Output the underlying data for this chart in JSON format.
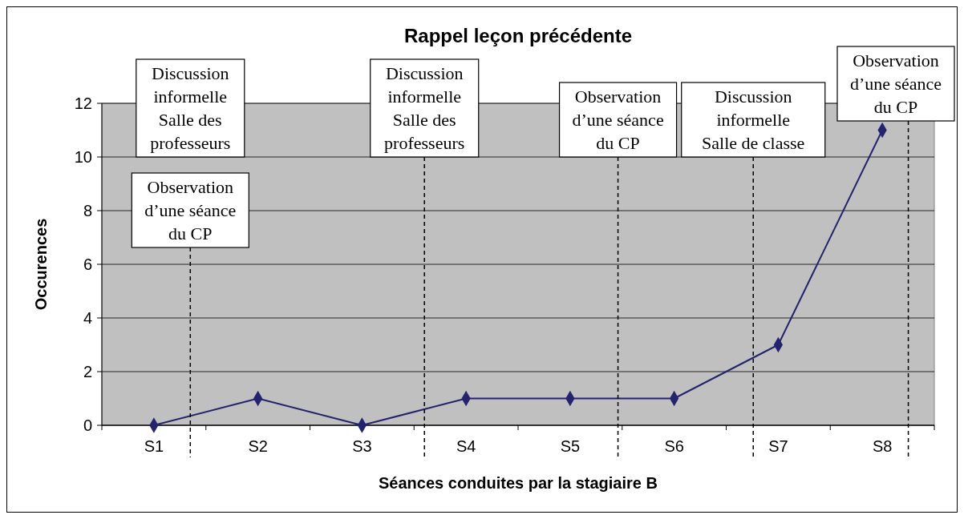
{
  "chart_data": {
    "type": "line",
    "title": "Rappel leçon précédente",
    "xlabel": "Séances conduites par la stagiaire B",
    "ylabel": "Occurences",
    "categories": [
      "S1",
      "S2",
      "S3",
      "S4",
      "S5",
      "S6",
      "S7",
      "S8"
    ],
    "series": [
      {
        "color": "#24246e",
        "values": [
          0,
          1,
          0,
          1,
          1,
          1,
          3,
          11
        ]
      }
    ],
    "ylim": [
      0,
      12
    ],
    "yticks": [
      0,
      2,
      4,
      6,
      8,
      10,
      12
    ],
    "grid": "y",
    "marker": "diamond",
    "line_style": "solid",
    "annotations": [
      "Discussion\ninformelle\nSalle des\nprofesseurs",
      "Observation\nd’une séance\ndu CP",
      "Discussion\ninformelle\nSalle des\nprofesseurs",
      "Observation\nd’une séance\ndu CP",
      "Discussion\ninformelle\nSalle de classe",
      "Observation\nd’une séance\ndu CP"
    ]
  }
}
